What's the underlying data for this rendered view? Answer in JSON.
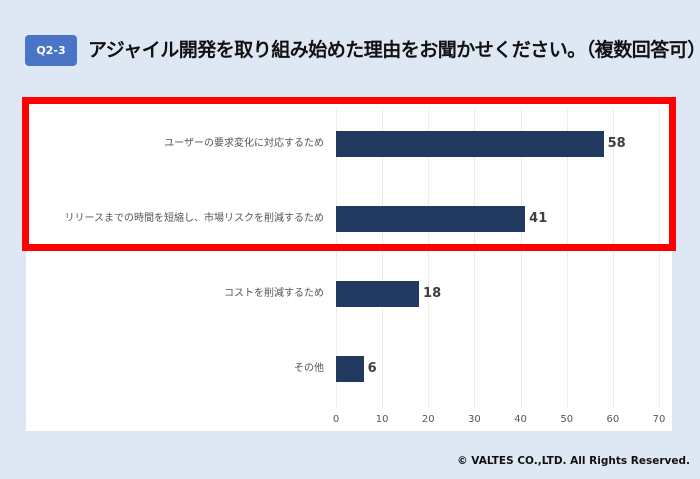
{
  "header": {
    "badge": "Q2-3",
    "title": "アジャイル開発を取り組み始めた理由をお聞かせください。（複数回答可）"
  },
  "footer": {
    "copyright": "© VALTES CO.,LTD. All Rights Reserved."
  },
  "colors": {
    "bar": "#22395f",
    "badge": "#4a75c7",
    "highlight": "#ff0000",
    "background": "#dde8f4"
  },
  "chart_data": {
    "type": "bar",
    "orientation": "horizontal",
    "title": "アジャイル開発を取り組み始めた理由をお聞かせください。（複数回答可）",
    "categories": [
      "ユーザーの要求変化に対応するため",
      "リリースまでの時間を短縮し、市場リスクを削減するため",
      "コストを削減するため",
      "その他"
    ],
    "values": [
      58,
      41,
      18,
      6
    ],
    "value_labels": [
      "58",
      "41",
      "18",
      "6"
    ],
    "xlabel": "",
    "ylabel": "",
    "xlim": [
      0,
      70
    ],
    "xticks": [
      "0",
      "10",
      "20",
      "30",
      "40",
      "50",
      "60",
      "70"
    ],
    "grid": true,
    "legend": null,
    "annotations": [
      "Red box highlights top two categories"
    ]
  }
}
